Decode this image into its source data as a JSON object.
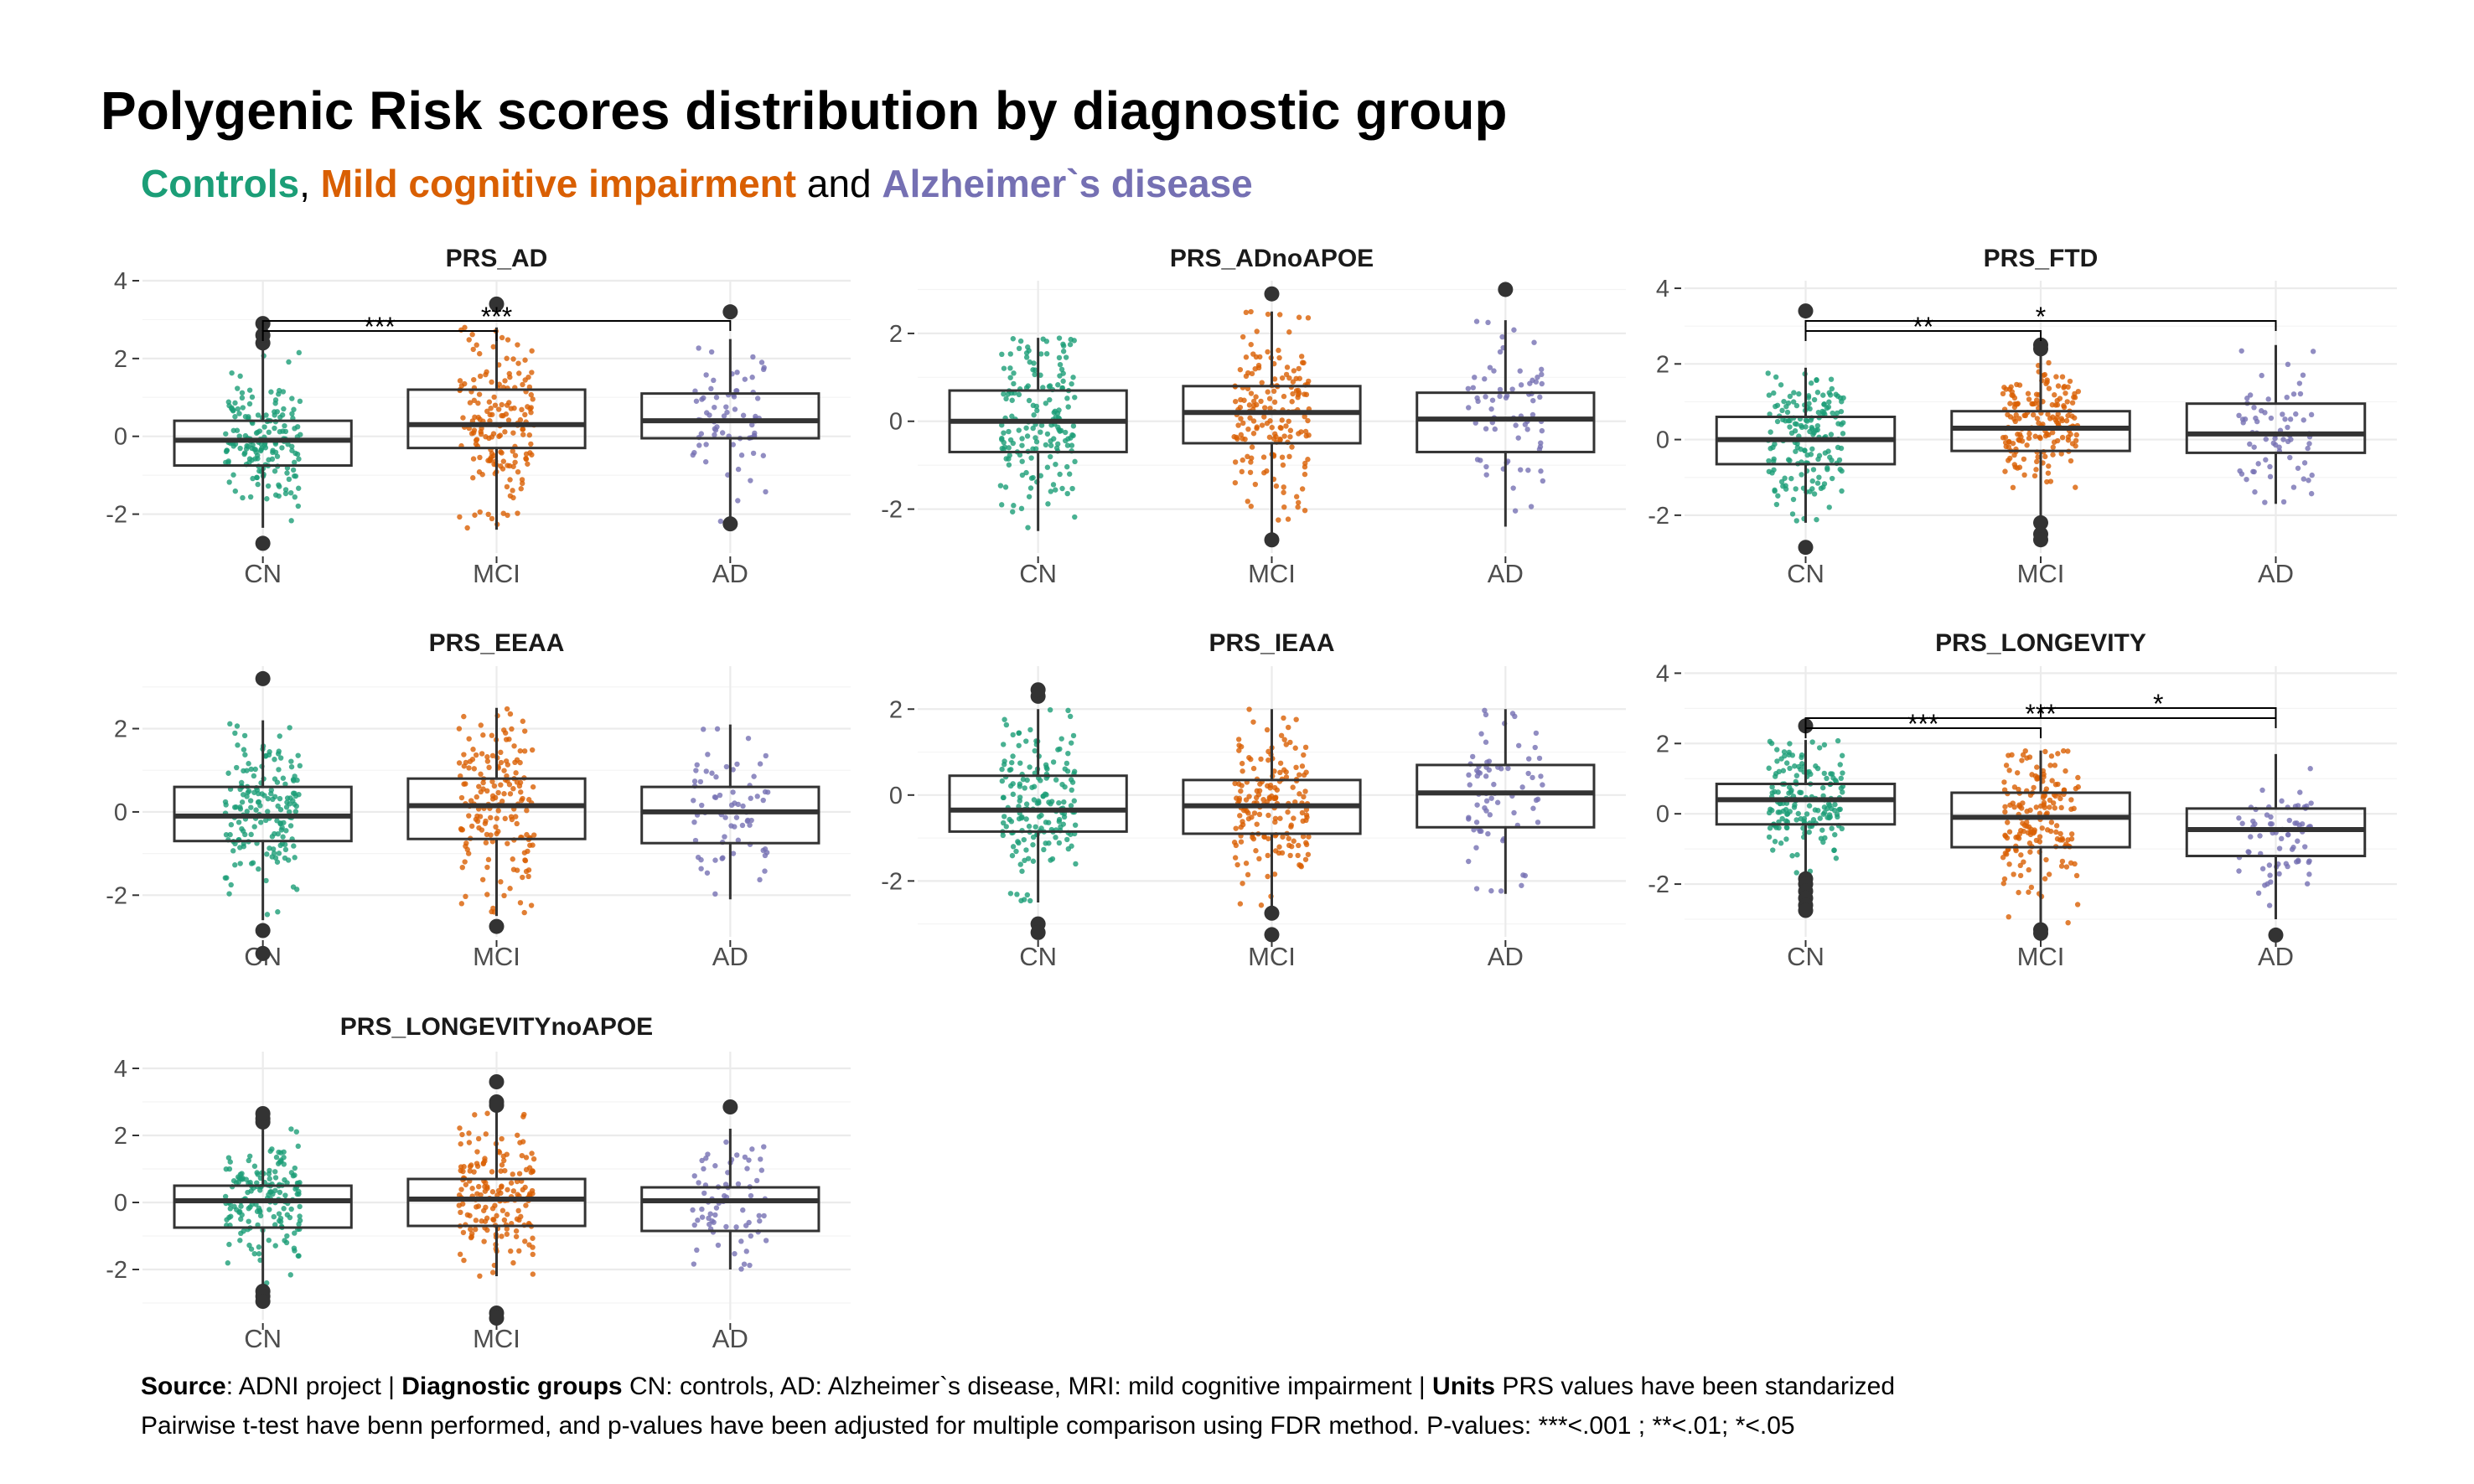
{
  "title": "Polygenic Risk scores distribution by diagnostic group",
  "subtitle": {
    "parts": [
      {
        "text": "Controls",
        "color": "#1B9E77"
      },
      {
        "text": ", ",
        "color": "#000000"
      },
      {
        "text": "Mild cognitive impairment",
        "color": "#D95F02"
      },
      {
        "text": " and ",
        "color": "#000000"
      },
      {
        "text": "Alzheimer`s disease",
        "color": "#7570B3"
      }
    ]
  },
  "caption": {
    "line1_source_label": "Source",
    "line1_source_text": ": ADNI project | ",
    "line1_groups_label": "Diagnostic groups",
    "line1_groups_text": " CN: controls, AD: Alzheimer`s disease, MRI: mild cognitive impairment | ",
    "line1_units_label": "Units",
    "line1_units_text": " PRS values have been standarized",
    "line2": "Pairwise t-test have benn performed, and p-values have been adjusted for multiple comparison using FDR method. P-values: ***<.001 ; **<.01; *<.05"
  },
  "colors": {
    "CN": "#1B9E77",
    "MCI": "#D95F02",
    "AD": "#7570B3",
    "box": "#333333",
    "grid": "#EBEBEB"
  },
  "chart_data": [
    {
      "type": "box",
      "title": "PRS_AD",
      "categories": [
        "CN",
        "MCI",
        "AD"
      ],
      "ylim": [
        -3,
        4
      ],
      "yticks": [
        -2,
        0,
        2,
        4
      ],
      "boxes": [
        {
          "group": "CN",
          "q1": -0.75,
          "median": -0.1,
          "q3": 0.4,
          "whisker_low": -2.35,
          "whisker_high": 2.3,
          "outliers": [
            2.4,
            2.6,
            2.9,
            -2.75
          ]
        },
        {
          "group": "MCI",
          "q1": -0.3,
          "median": 0.3,
          "q3": 1.2,
          "whisker_low": -2.4,
          "whisker_high": 2.8,
          "outliers": [
            3.4
          ]
        },
        {
          "group": "AD",
          "q1": -0.05,
          "median": 0.4,
          "q3": 1.1,
          "whisker_low": -2.2,
          "whisker_high": 2.5,
          "outliers": [
            3.2,
            -2.25
          ]
        }
      ],
      "comparisons": [
        {
          "from": "CN",
          "to": "MCI",
          "label": "***"
        },
        {
          "from": "CN",
          "to": "AD",
          "label": "***"
        }
      ]
    },
    {
      "type": "box",
      "title": "PRS_ADnoAPOE",
      "categories": [
        "CN",
        "MCI",
        "AD"
      ],
      "ylim": [
        -3,
        3.2
      ],
      "yticks": [
        -2,
        0,
        2
      ],
      "boxes": [
        {
          "group": "CN",
          "q1": -0.7,
          "median": 0.0,
          "q3": 0.7,
          "whisker_low": -2.5,
          "whisker_high": 1.9,
          "outliers": []
        },
        {
          "group": "MCI",
          "q1": -0.5,
          "median": 0.2,
          "q3": 0.8,
          "whisker_low": -2.6,
          "whisker_high": 2.5,
          "outliers": [
            2.9,
            -2.7
          ]
        },
        {
          "group": "AD",
          "q1": -0.7,
          "median": 0.05,
          "q3": 0.65,
          "whisker_low": -2.4,
          "whisker_high": 2.3,
          "outliers": [
            3.0
          ]
        }
      ],
      "comparisons": []
    },
    {
      "type": "box",
      "title": "PRS_FTD",
      "categories": [
        "CN",
        "MCI",
        "AD"
      ],
      "ylim": [
        -3,
        4.2
      ],
      "yticks": [
        -2,
        0,
        2,
        4
      ],
      "boxes": [
        {
          "group": "CN",
          "q1": -0.65,
          "median": 0.0,
          "q3": 0.6,
          "whisker_low": -2.2,
          "whisker_high": 1.9,
          "outliers": [
            3.4,
            -2.85
          ]
        },
        {
          "group": "MCI",
          "q1": -0.3,
          "median": 0.3,
          "q3": 0.75,
          "whisker_low": -2.1,
          "whisker_high": 2.3,
          "outliers": [
            2.4,
            2.5,
            -2.2,
            -2.5,
            -2.65
          ]
        },
        {
          "group": "AD",
          "q1": -0.35,
          "median": 0.15,
          "q3": 0.95,
          "whisker_low": -1.7,
          "whisker_high": 2.5,
          "outliers": []
        }
      ],
      "comparisons": [
        {
          "from": "CN",
          "to": "MCI",
          "label": "**"
        },
        {
          "from": "CN",
          "to": "AD",
          "label": "*"
        }
      ]
    },
    {
      "type": "box",
      "title": "PRS_EEAA",
      "categories": [
        "CN",
        "MCI",
        "AD"
      ],
      "ylim": [
        -3,
        3.5
      ],
      "yticks": [
        -2,
        0,
        2
      ],
      "boxes": [
        {
          "group": "CN",
          "q1": -0.7,
          "median": -0.1,
          "q3": 0.6,
          "whisker_low": -2.6,
          "whisker_high": 2.2,
          "outliers": [
            3.2,
            -2.85,
            -3.4
          ]
        },
        {
          "group": "MCI",
          "q1": -0.65,
          "median": 0.15,
          "q3": 0.8,
          "whisker_low": -2.5,
          "whisker_high": 2.5,
          "outliers": [
            -2.75
          ]
        },
        {
          "group": "AD",
          "q1": -0.75,
          "median": 0.0,
          "q3": 0.6,
          "whisker_low": -2.1,
          "whisker_high": 2.1,
          "outliers": []
        }
      ],
      "comparisons": []
    },
    {
      "type": "box",
      "title": "PRS_IEAA",
      "categories": [
        "CN",
        "MCI",
        "AD"
      ],
      "ylim": [
        -3.3,
        3
      ],
      "yticks": [
        -2,
        0,
        2
      ],
      "boxes": [
        {
          "group": "CN",
          "q1": -0.85,
          "median": -0.35,
          "q3": 0.45,
          "whisker_low": -2.5,
          "whisker_high": 2.0,
          "outliers": [
            2.3,
            2.45,
            -3.0,
            -3.2
          ]
        },
        {
          "group": "MCI",
          "q1": -0.9,
          "median": -0.25,
          "q3": 0.35,
          "whisker_low": -2.6,
          "whisker_high": 2.0,
          "outliers": [
            -2.75,
            -3.25
          ]
        },
        {
          "group": "AD",
          "q1": -0.75,
          "median": 0.05,
          "q3": 0.7,
          "whisker_low": -2.3,
          "whisker_high": 2.0,
          "outliers": []
        }
      ],
      "comparisons": []
    },
    {
      "type": "box",
      "title": "PRS_LONGEVITY",
      "categories": [
        "CN",
        "MCI",
        "AD"
      ],
      "ylim": [
        -3.5,
        4.2
      ],
      "yticks": [
        -2,
        0,
        2,
        4
      ],
      "boxes": [
        {
          "group": "CN",
          "q1": -0.3,
          "median": 0.4,
          "q3": 0.85,
          "whisker_low": -1.7,
          "whisker_high": 2.1,
          "outliers": [
            2.5,
            -1.85,
            -2.0,
            -2.2,
            -2.4,
            -2.6,
            -2.75
          ]
        },
        {
          "group": "MCI",
          "q1": -0.95,
          "median": -0.1,
          "q3": 0.6,
          "whisker_low": -3.1,
          "whisker_high": 1.8,
          "outliers": [
            -3.3,
            -3.4
          ]
        },
        {
          "group": "AD",
          "q1": -1.2,
          "median": -0.45,
          "q3": 0.15,
          "whisker_low": -3.0,
          "whisker_high": 1.7,
          "outliers": [
            -3.45
          ]
        }
      ],
      "comparisons": [
        {
          "from": "CN",
          "to": "MCI",
          "label": "***"
        },
        {
          "from": "CN",
          "to": "AD",
          "label": "***"
        },
        {
          "from": "MCI",
          "to": "AD",
          "label": "*"
        }
      ]
    },
    {
      "type": "box",
      "title": "PRS_LONGEVITYnoAPOE",
      "categories": [
        "CN",
        "MCI",
        "AD"
      ],
      "ylim": [
        -3.5,
        4.5
      ],
      "yticks": [
        -2,
        0,
        2,
        4
      ],
      "boxes": [
        {
          "group": "CN",
          "q1": -0.75,
          "median": 0.05,
          "q3": 0.5,
          "whisker_low": -2.6,
          "whisker_high": 2.2,
          "outliers": [
            2.4,
            2.5,
            2.65,
            -2.65,
            -2.8,
            -2.95
          ]
        },
        {
          "group": "MCI",
          "q1": -0.7,
          "median": 0.1,
          "q3": 0.7,
          "whisker_low": -2.2,
          "whisker_high": 2.7,
          "outliers": [
            2.9,
            3.0,
            3.6,
            -3.3,
            -3.45
          ]
        },
        {
          "group": "AD",
          "q1": -0.85,
          "median": 0.05,
          "q3": 0.45,
          "whisker_low": -2.0,
          "whisker_high": 2.2,
          "outliers": [
            2.85
          ]
        }
      ],
      "comparisons": []
    }
  ]
}
